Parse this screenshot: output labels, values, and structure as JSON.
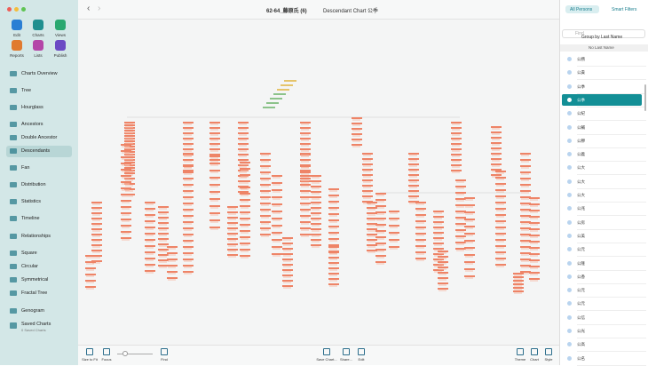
{
  "window": {
    "title": "62-64_藤原氏 (6)",
    "chart_title": "Descendant Chart 公季"
  },
  "toolbar": {
    "buttons": [
      "Edit",
      "Charts",
      "Views",
      "Reports",
      "Lists",
      "Publish"
    ]
  },
  "sidebar": {
    "items": [
      "Charts Overview",
      "Tree",
      "Hourglass",
      "Ancestors",
      "Double Ancestor",
      "Descendants",
      "Fan",
      "Distribution",
      "Statistics",
      "Timeline",
      "Relationships",
      "Square",
      "Circular",
      "Symmetrical",
      "Fractal Tree",
      "Genogram"
    ],
    "saved_charts": {
      "label": "Saved Charts",
      "subtitle": "0 Saved Charts"
    }
  },
  "bottom_toolbar": {
    "left": [
      "Size to Fit",
      "Focus",
      "Find"
    ],
    "middle": [
      "Save Chart...",
      "Share...",
      "Edit"
    ],
    "right": [
      "Theme",
      "Chart",
      "Style"
    ]
  },
  "persons": {
    "tabs": [
      "All Persons",
      "Smart Filters"
    ],
    "search_placeholder": "Find",
    "group_by": "Group by Last Name",
    "section": "No Last Name",
    "names": [
      "公務",
      "公貴",
      "公季",
      "公季",
      "公紀",
      "公輔",
      "公穆",
      "公義",
      "公大",
      "公大",
      "公大",
      "公兆",
      "公房",
      "公美",
      "公元",
      "公隆",
      "公香",
      "公元",
      "公元",
      "公信",
      "公光",
      "公高",
      "公名"
    ]
  }
}
